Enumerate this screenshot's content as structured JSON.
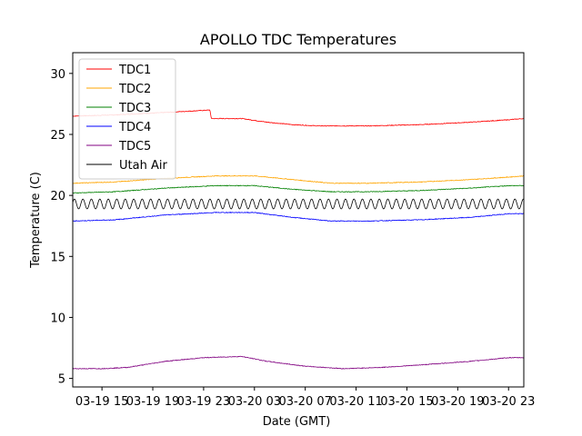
{
  "chart_data": {
    "type": "line",
    "title": "APOLLO TDC Temperatures",
    "xlabel": "Date (GMT)",
    "ylabel": "Temperature (C)",
    "xlim": [
      0.7,
      36.2
    ],
    "ylim": [
      4.3,
      31.7
    ],
    "y_ticks": [
      5,
      10,
      15,
      20,
      25,
      30
    ],
    "x_ticks": [
      {
        "label": "03-19 15",
        "hour": 3
      },
      {
        "label": "03-19 19",
        "hour": 7
      },
      {
        "label": "03-19 23",
        "hour": 11
      },
      {
        "label": "03-20 03",
        "hour": 15
      },
      {
        "label": "03-20 07",
        "hour": 19
      },
      {
        "label": "03-20 11",
        "hour": 23
      },
      {
        "label": "03-20 15",
        "hour": 27
      },
      {
        "label": "03-20 19",
        "hour": 31
      },
      {
        "label": "03-20 23",
        "hour": 35
      }
    ],
    "x_units": "hours after 03-19 12:00 GMT",
    "legend_position": "top-left",
    "series": [
      {
        "name": "TDC1",
        "color": "#ff0000",
        "x": [
          0.7,
          4,
          8,
          11.5,
          11.6,
          14,
          16,
          18,
          20,
          24,
          28,
          32,
          35,
          36.2
        ],
        "values": [
          26.5,
          26.6,
          26.8,
          27.0,
          26.3,
          26.3,
          26.0,
          25.8,
          25.7,
          25.7,
          25.8,
          26.0,
          26.2,
          26.3
        ]
      },
      {
        "name": "TDC2",
        "color": "#ffa500",
        "x": [
          0.7,
          4,
          8,
          12,
          15,
          18,
          21,
          24,
          28,
          32,
          35,
          36.2
        ],
        "values": [
          21.0,
          21.1,
          21.4,
          21.6,
          21.6,
          21.3,
          21.0,
          21.0,
          21.1,
          21.3,
          21.5,
          21.6
        ]
      },
      {
        "name": "TDC3",
        "color": "#008000",
        "x": [
          0.7,
          4,
          8,
          12,
          15,
          18,
          21,
          24,
          28,
          32,
          35,
          36.2
        ],
        "values": [
          20.2,
          20.3,
          20.6,
          20.8,
          20.8,
          20.5,
          20.3,
          20.3,
          20.4,
          20.6,
          20.8,
          20.8
        ]
      },
      {
        "name": "TDC4",
        "color": "#0000ff",
        "x": [
          0.7,
          4,
          8,
          12,
          15,
          18,
          21,
          24,
          28,
          32,
          35,
          36.2
        ],
        "values": [
          17.9,
          18.0,
          18.4,
          18.6,
          18.6,
          18.2,
          17.9,
          17.9,
          18.0,
          18.2,
          18.5,
          18.5
        ]
      },
      {
        "name": "TDC5",
        "color": "#800080",
        "x": [
          0.7,
          3,
          5,
          8,
          11,
          14,
          16,
          19,
          22,
          25,
          28,
          32,
          35,
          36.2
        ],
        "values": [
          5.8,
          5.8,
          5.9,
          6.4,
          6.7,
          6.8,
          6.4,
          6.0,
          5.8,
          5.9,
          6.1,
          6.4,
          6.7,
          6.7
        ]
      },
      {
        "name": "Utah Air",
        "color": "#000000",
        "oscillating": true,
        "center": 19.3,
        "amplitude": 0.4,
        "cycles_per_hour": 1.5,
        "x": [
          0.7,
          36.2
        ],
        "values": [
          19.3,
          19.3
        ]
      }
    ]
  }
}
